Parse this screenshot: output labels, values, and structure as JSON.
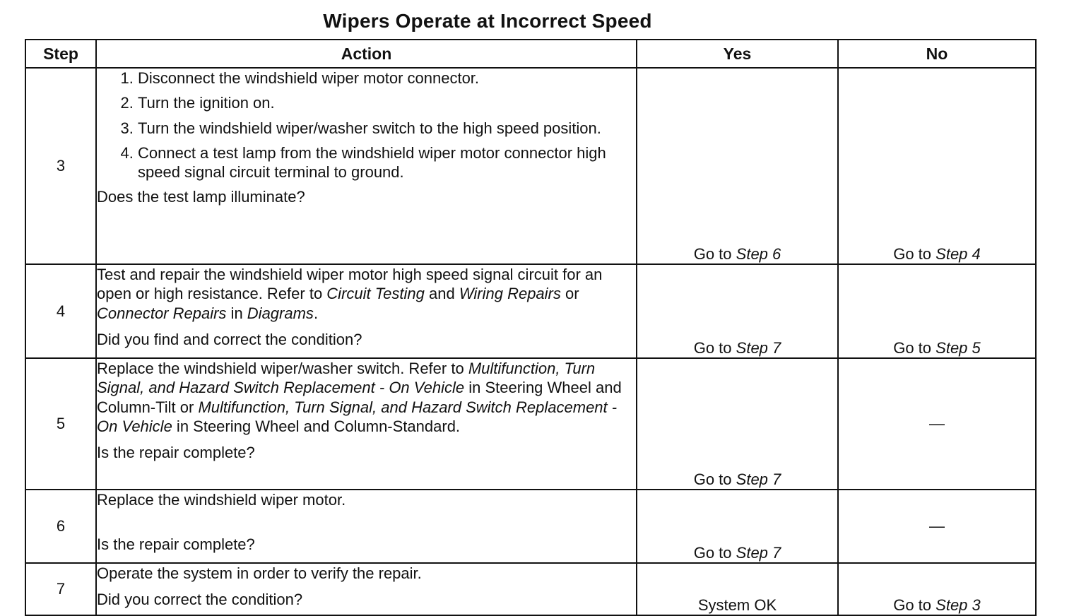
{
  "title": "Wipers Operate at Incorrect Speed",
  "headers": {
    "step": "Step",
    "action": "Action",
    "yes": "Yes",
    "no": "No"
  },
  "go_to": "Go to",
  "rows": [
    {
      "step": "3",
      "substeps": [
        "Disconnect the windshield wiper motor connector.",
        "Turn the ignition on.",
        "Turn the windshield wiper/washer switch to the high speed position.",
        "Connect a test lamp from the windshield wiper motor connector high speed signal circuit terminal to ground."
      ],
      "question": "Does the test lamp illuminate?",
      "yes_step": "Step 6",
      "no_step": "Step 4"
    },
    {
      "step": "4",
      "action_parts": [
        "Test and repair the windshield wiper motor high speed signal circuit for an open or high resistance. Refer to ",
        "Circuit Testing",
        " and ",
        "Wiring Repairs",
        " or ",
        "Connector Repairs",
        " in ",
        "Diagrams",
        "."
      ],
      "question": "Did you find and correct the condition?",
      "yes_step": "Step 7",
      "no_step": "Step 5"
    },
    {
      "step": "5",
      "action_parts": [
        "Replace the windshield wiper/washer switch. Refer to ",
        "Multifunction, Turn Signal, and Hazard Switch Replacement - On Vehicle",
        " in Steering Wheel and Column-Tilt or ",
        "Multifunction, Turn Signal, and Hazard Switch Replacement - On Vehicle",
        " in Steering Wheel and Column-Standard."
      ],
      "question": "Is the repair complete?",
      "yes_step": "Step 7",
      "no_text": "—"
    },
    {
      "step": "6",
      "action": "Replace the windshield wiper motor.",
      "question": "Is the repair complete?",
      "yes_step": "Step 7",
      "no_text": "—"
    },
    {
      "step": "7",
      "action": "Operate the system in order to verify the repair.",
      "question": "Did you correct the condition?",
      "yes_text": "System OK",
      "no_step": "Step 3"
    }
  ]
}
